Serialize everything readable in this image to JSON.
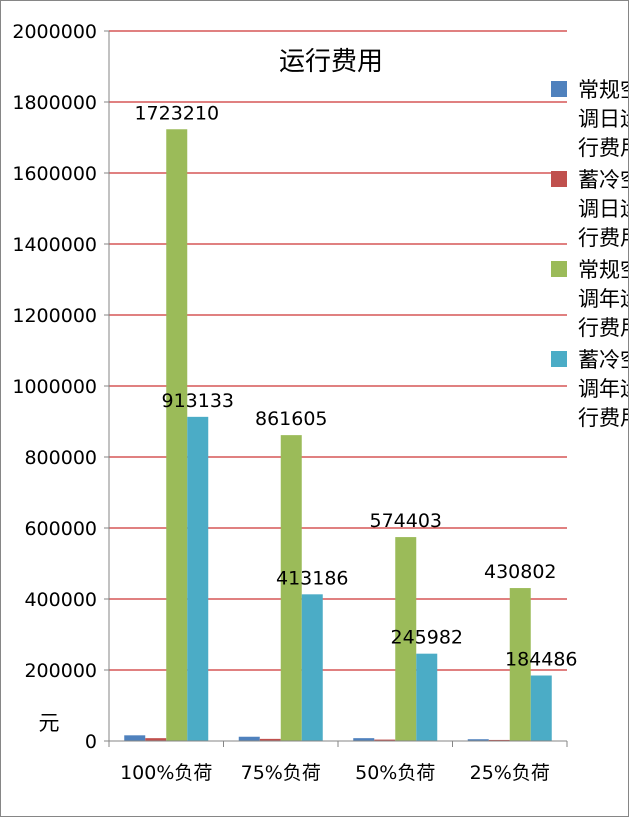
{
  "chart_data": {
    "type": "bar",
    "title": "运行费用",
    "ylabel": "元",
    "xlabel": "",
    "ylim": [
      0,
      2000000
    ],
    "yticks": [
      0,
      200000,
      400000,
      600000,
      800000,
      1000000,
      1200000,
      1400000,
      1600000,
      1800000,
      2000000
    ],
    "grid": true,
    "legend_position": "right",
    "categories": [
      "100%负荷",
      "75%负荷",
      "50%负荷",
      "25%负荷"
    ],
    "series": [
      {
        "name": "常规空调日运行费用",
        "color": "#4F81BD",
        "values": [
          16000,
          12000,
          8000,
          5000
        ],
        "labels": [
          "",
          "",
          "",
          ""
        ]
      },
      {
        "name": "蓄冷空调日运行费用",
        "color": "#C0504D",
        "values": [
          8000,
          6000,
          4000,
          3000
        ],
        "labels": [
          "",
          "",
          "",
          ""
        ]
      },
      {
        "name": "常规空调年运行费用",
        "color": "#9BBB59",
        "values": [
          1723210,
          861605,
          574403,
          430802
        ],
        "labels": [
          "1723210",
          "861605",
          "574403",
          "430802"
        ]
      },
      {
        "name": "蓄冷空调年运行费用",
        "color": "#4BACC6",
        "values": [
          913133,
          413186,
          245982,
          184486
        ],
        "labels": [
          "913133",
          "413186",
          "245982",
          "184486"
        ]
      }
    ]
  }
}
